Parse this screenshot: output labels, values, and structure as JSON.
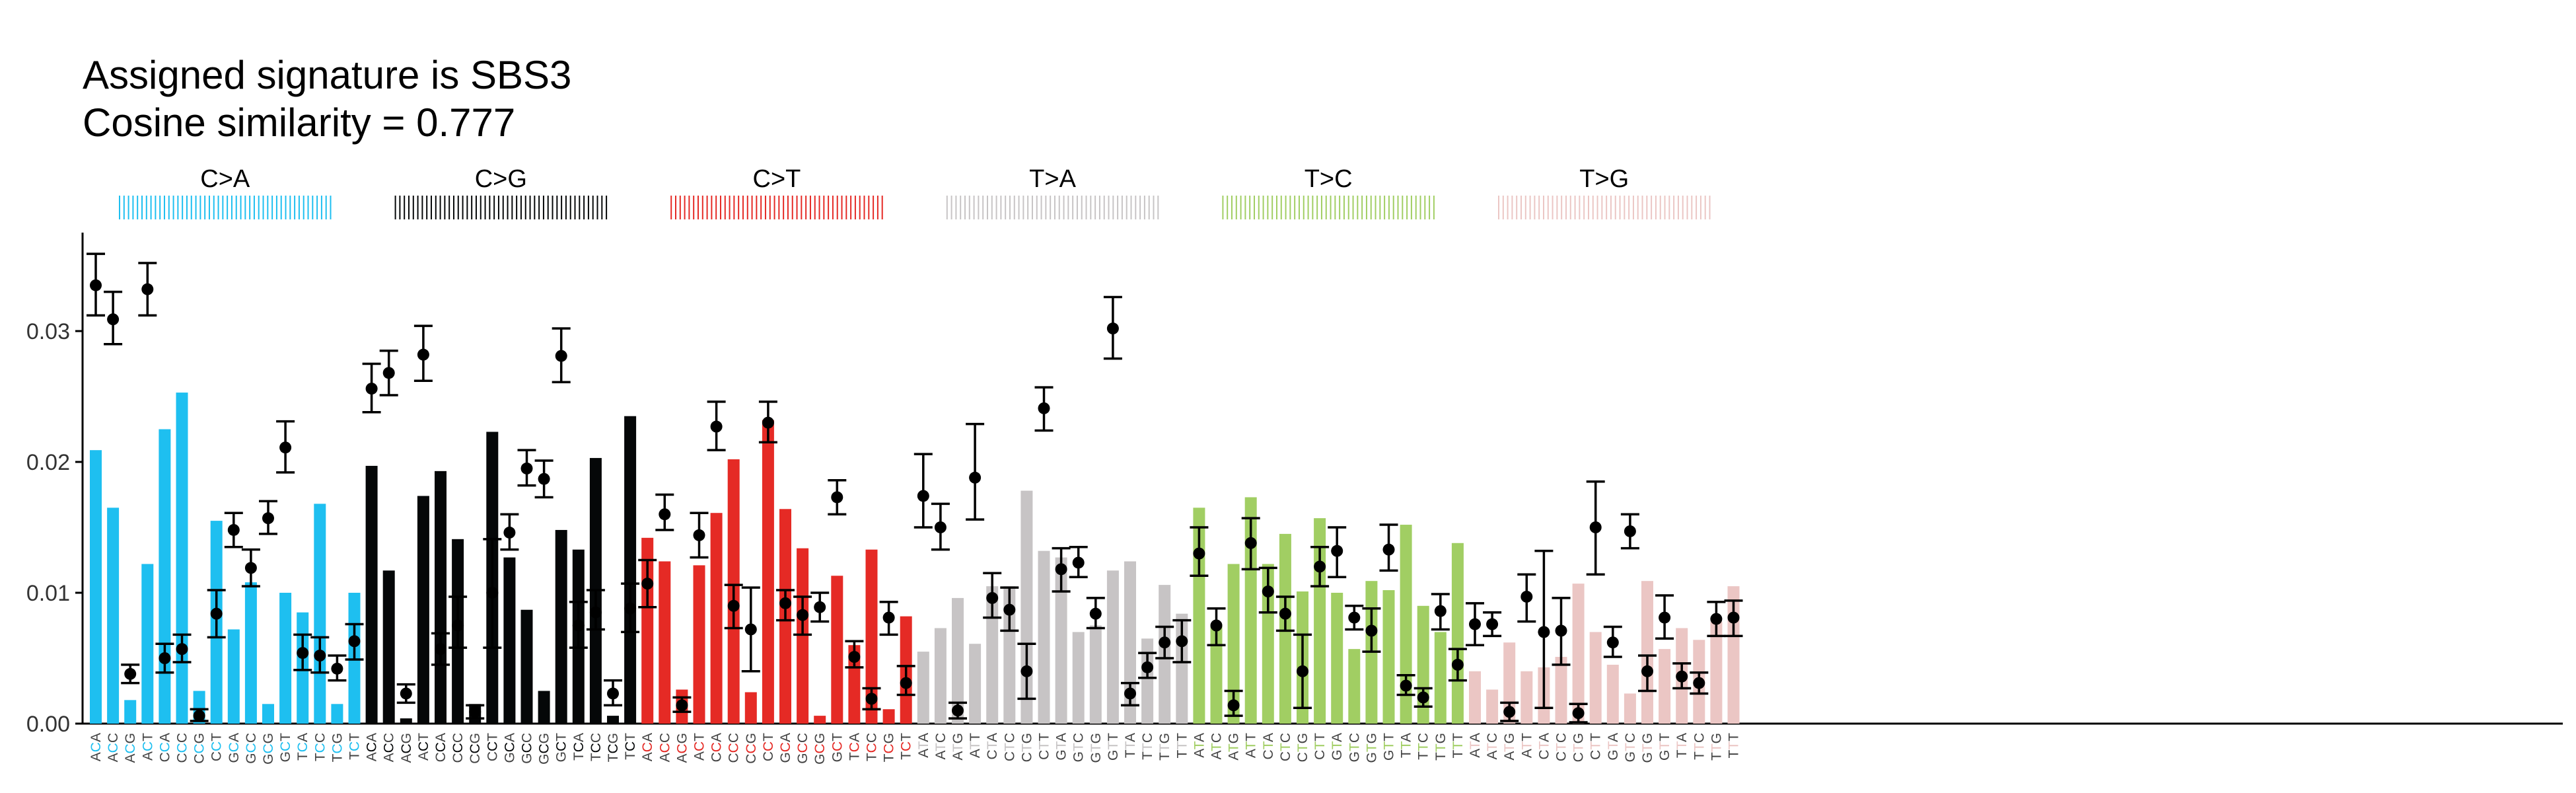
{
  "chart_data": {
    "type": "bar",
    "title": "Assigned signature is SBS3",
    "subtitle": "Cosine similarity = 0.777",
    "ylim": [
      0,
      0.0375
    ],
    "yticks": [
      0.0,
      0.01,
      0.02,
      0.03
    ],
    "ytick_labels": [
      "0.00",
      "0.01",
      "0.02",
      "0.03"
    ],
    "legend": "none",
    "grid": false,
    "tick_text_color": "#444444",
    "panels": [
      {
        "label": "C>A",
        "color": "#1EBFF0",
        "ref": "C",
        "contexts": [
          "ACA",
          "ACC",
          "ACG",
          "ACT",
          "CCA",
          "CCC",
          "CCG",
          "CCT",
          "GCA",
          "GCC",
          "GCG",
          "GCT",
          "TCA",
          "TCC",
          "TCG",
          "TCT"
        ],
        "bars": [
          0.0209,
          0.0165,
          0.0018,
          0.0122,
          0.0225,
          0.0253,
          0.0025,
          0.0155,
          0.0072,
          0.0108,
          0.0015,
          0.01,
          0.0085,
          0.0168,
          0.0015,
          0.01
        ],
        "points": [
          0.0335,
          0.0309,
          0.0038,
          0.0332,
          0.005,
          0.0057,
          0.0006,
          0.0084,
          0.0148,
          0.0119,
          0.0157,
          0.0211,
          0.0054,
          0.0052,
          0.0042,
          0.0063
        ],
        "err_lo": [
          0.0312,
          0.029,
          0.0031,
          0.0312,
          0.0039,
          0.0047,
          0.0002,
          0.0066,
          0.0135,
          0.0105,
          0.0145,
          0.0192,
          0.0041,
          0.0039,
          0.0033,
          0.0049
        ],
        "err_hi": [
          0.0359,
          0.033,
          0.0045,
          0.0352,
          0.0061,
          0.0068,
          0.0011,
          0.0102,
          0.0161,
          0.0133,
          0.017,
          0.0231,
          0.0068,
          0.0066,
          0.0052,
          0.0076
        ]
      },
      {
        "label": "C>G",
        "color": "#050708",
        "ref": "C",
        "contexts": [
          "ACA",
          "ACC",
          "ACG",
          "ACT",
          "CCA",
          "CCC",
          "CCG",
          "CCT",
          "GCA",
          "GCC",
          "GCG",
          "GCT",
          "TCA",
          "TCC",
          "TCG",
          "TCT"
        ],
        "bars": [
          0.0197,
          0.0117,
          0.0004,
          0.0174,
          0.0193,
          0.0141,
          0.0015,
          0.0223,
          0.0127,
          0.0087,
          0.0025,
          0.0148,
          0.0133,
          0.0203,
          0.0006,
          0.0235
        ],
        "points": [
          0.0256,
          0.0268,
          0.0023,
          0.0282,
          0.0057,
          0.0075,
          0.0009,
          0.01,
          0.0146,
          0.0195,
          0.0187,
          0.0281,
          0.0075,
          0.0085,
          0.0023,
          0.0088
        ],
        "err_lo": [
          0.0238,
          0.0251,
          0.0016,
          0.0262,
          0.0045,
          0.0058,
          0.0004,
          0.0058,
          0.0133,
          0.0182,
          0.0173,
          0.0261,
          0.0058,
          0.0072,
          0.0014,
          0.007
        ],
        "err_hi": [
          0.0275,
          0.0285,
          0.003,
          0.0304,
          0.0069,
          0.0097,
          0.0014,
          0.0141,
          0.016,
          0.0209,
          0.0201,
          0.0302,
          0.0093,
          0.0102,
          0.0033,
          0.0107
        ]
      },
      {
        "label": "C>T",
        "color": "#E52A25",
        "ref": "C",
        "contexts": [
          "ACA",
          "ACC",
          "ACG",
          "ACT",
          "CCA",
          "CCC",
          "CCG",
          "CCT",
          "GCA",
          "GCC",
          "GCG",
          "GCT",
          "TCA",
          "TCC",
          "TCG",
          "TCT"
        ],
        "bars": [
          0.0142,
          0.0124,
          0.0026,
          0.0121,
          0.0161,
          0.0202,
          0.0024,
          0.0232,
          0.0164,
          0.0134,
          0.0006,
          0.0113,
          0.006,
          0.0133,
          0.0011,
          0.0082
        ],
        "points": [
          0.0107,
          0.016,
          0.0014,
          0.0144,
          0.0227,
          0.009,
          0.0072,
          0.023,
          0.0092,
          0.0083,
          0.0089,
          0.0173,
          0.0051,
          0.0019,
          0.0081,
          0.0031
        ],
        "err_lo": [
          0.0089,
          0.0148,
          0.0009,
          0.0127,
          0.0209,
          0.0073,
          0.004,
          0.0215,
          0.0079,
          0.0068,
          0.0078,
          0.016,
          0.0043,
          0.0011,
          0.0068,
          0.0022
        ],
        "err_hi": [
          0.0125,
          0.0175,
          0.002,
          0.0161,
          0.0246,
          0.0106,
          0.0104,
          0.0246,
          0.0102,
          0.0097,
          0.01,
          0.0186,
          0.0063,
          0.0027,
          0.0093,
          0.0044
        ]
      },
      {
        "label": "T>A",
        "color": "#C7C4C5",
        "ref": "T",
        "contexts": [
          "ATA",
          "ATC",
          "ATG",
          "ATT",
          "CTA",
          "CTC",
          "CTG",
          "CTT",
          "GTA",
          "GTC",
          "GTG",
          "GTT",
          "TTA",
          "TTC",
          "TTG",
          "TTT"
        ],
        "bars": [
          0.0055,
          0.0073,
          0.0096,
          0.0061,
          0.0105,
          0.0105,
          0.0178,
          0.0132,
          0.0127,
          0.007,
          0.0075,
          0.0117,
          0.0124,
          0.0065,
          0.0106,
          0.0084
        ],
        "points": [
          0.0174,
          0.015,
          0.001,
          0.0188,
          0.0096,
          0.0087,
          0.004,
          0.0241,
          0.0118,
          0.0123,
          0.0084,
          0.0302,
          0.0023,
          0.0043,
          0.0062,
          0.0063
        ],
        "err_lo": [
          0.015,
          0.0133,
          0.0004,
          0.0156,
          0.0081,
          0.0071,
          0.0019,
          0.0224,
          0.0101,
          0.0112,
          0.0073,
          0.0279,
          0.0014,
          0.0035,
          0.005,
          0.0047
        ],
        "err_hi": [
          0.0206,
          0.0168,
          0.0016,
          0.0229,
          0.0115,
          0.0104,
          0.0061,
          0.0257,
          0.0134,
          0.0135,
          0.0096,
          0.0326,
          0.0031,
          0.0054,
          0.0074,
          0.0079
        ]
      },
      {
        "label": "T>C",
        "color": "#A1CE63",
        "ref": "T",
        "contexts": [
          "ATA",
          "ATC",
          "ATG",
          "ATT",
          "CTA",
          "CTC",
          "CTG",
          "CTT",
          "GTA",
          "GTC",
          "GTG",
          "GTT",
          "TTA",
          "TTC",
          "TTG",
          "TTT"
        ],
        "bars": [
          0.0165,
          0.0076,
          0.0122,
          0.0173,
          0.0122,
          0.0145,
          0.0101,
          0.0157,
          0.01,
          0.0057,
          0.0109,
          0.0102,
          0.0152,
          0.009,
          0.007,
          0.0138
        ],
        "points": [
          0.013,
          0.0075,
          0.0014,
          0.0138,
          0.0101,
          0.0084,
          0.004,
          0.012,
          0.0132,
          0.0081,
          0.0071,
          0.0133,
          0.0029,
          0.002,
          0.0086,
          0.0045
        ],
        "err_lo": [
          0.0113,
          0.006,
          0.0006,
          0.0118,
          0.0085,
          0.0071,
          0.0012,
          0.0105,
          0.0112,
          0.0072,
          0.0055,
          0.0117,
          0.0022,
          0.0013,
          0.0072,
          0.0033
        ],
        "err_hi": [
          0.015,
          0.0088,
          0.0025,
          0.0157,
          0.0119,
          0.0097,
          0.0068,
          0.0135,
          0.015,
          0.009,
          0.0088,
          0.0152,
          0.0037,
          0.0027,
          0.0099,
          0.0057
        ]
      },
      {
        "label": "T>G",
        "color": "#EBC6C4",
        "ref": "T",
        "contexts": [
          "ATA",
          "ATC",
          "ATG",
          "ATT",
          "CTA",
          "CTC",
          "CTG",
          "CTT",
          "GTA",
          "GTC",
          "GTG",
          "GTT",
          "TTA",
          "TTC",
          "TTG",
          "TTT"
        ],
        "bars": [
          0.004,
          0.0026,
          0.0062,
          0.004,
          0.0043,
          0.0051,
          0.0107,
          0.007,
          0.0045,
          0.0023,
          0.0109,
          0.0057,
          0.0073,
          0.0064,
          0.0078,
          0.0105
        ],
        "points": [
          0.0076,
          0.0076,
          0.0009,
          0.0097,
          0.007,
          0.0071,
          0.0008,
          0.015,
          0.0062,
          0.0147,
          0.004,
          0.0081,
          0.0036,
          0.0031,
          0.008,
          0.0081
        ],
        "err_lo": [
          0.006,
          0.0067,
          0.0002,
          0.0078,
          0.0012,
          0.0045,
          0.0001,
          0.0114,
          0.0051,
          0.0134,
          0.0025,
          0.0065,
          0.0027,
          0.0023,
          0.0067,
          0.0067
        ],
        "err_hi": [
          0.0092,
          0.0085,
          0.0016,
          0.0114,
          0.0132,
          0.0096,
          0.0015,
          0.0185,
          0.0074,
          0.016,
          0.0052,
          0.0098,
          0.0046,
          0.0039,
          0.0093,
          0.0094
        ]
      }
    ]
  }
}
